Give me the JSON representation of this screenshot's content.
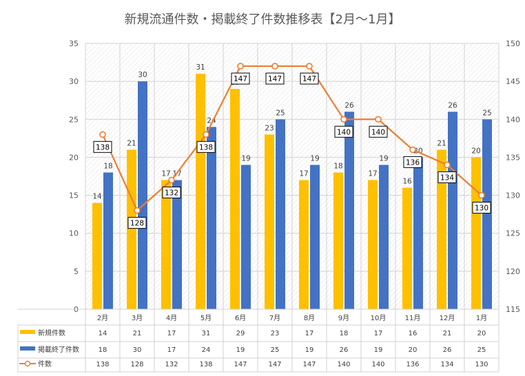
{
  "chart_data": {
    "type": "bar",
    "title": "新規流通件数・掲載終了件数推移表【2月～1月】",
    "categories": [
      "2月",
      "3月",
      "4月",
      "5月",
      "6月",
      "7月",
      "8月",
      "9月",
      "10月",
      "11月",
      "12月",
      "1月"
    ],
    "series": [
      {
        "name": "新規件数",
        "type": "bar",
        "axis": "left",
        "color": "#FFC000",
        "values": [
          14,
          21,
          17,
          31,
          29,
          23,
          17,
          18,
          17,
          16,
          21,
          20
        ]
      },
      {
        "name": "掲載終了件数",
        "type": "bar",
        "axis": "left",
        "color": "#4472C4",
        "values": [
          18,
          30,
          17,
          24,
          19,
          25,
          19,
          26,
          19,
          20,
          26,
          25
        ]
      },
      {
        "name": "件数",
        "type": "line",
        "axis": "right",
        "color": "#ED7D31",
        "values": [
          138,
          128,
          132,
          138,
          147,
          147,
          147,
          140,
          140,
          136,
          134,
          130
        ]
      }
    ],
    "y_left": {
      "min": 0,
      "max": 35,
      "step": 5,
      "ticks": [
        "0",
        "5",
        "10",
        "15",
        "20",
        "25",
        "30",
        "35"
      ]
    },
    "y_right": {
      "min": 115,
      "max": 150,
      "step": 5,
      "ticks": [
        "115",
        "120",
        "125",
        "130",
        "135",
        "140",
        "145",
        "150"
      ]
    },
    "grid": true,
    "legend": "data-table",
    "data_table": true
  }
}
